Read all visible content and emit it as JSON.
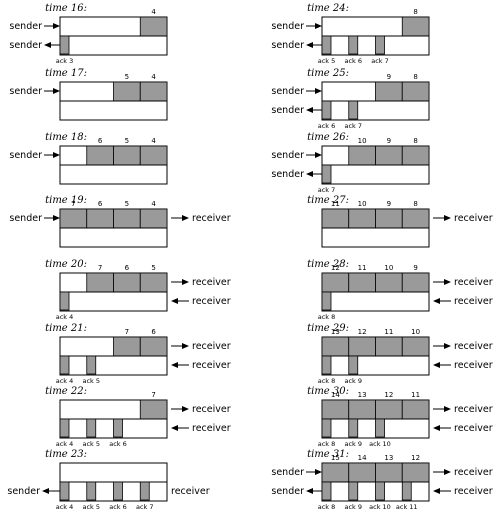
{
  "colors": {
    "segment_fill": "#9a9a9a",
    "outline": "#000000"
  },
  "labels": {
    "sender": "sender",
    "receiver": "receiver",
    "ack_prefix": "ack"
  },
  "panels": [
    {
      "time": "time 16:",
      "data": [
        4
      ],
      "acks": [
        3
      ],
      "arrows": {
        "top_left": "sender",
        "bottom_left": "sender"
      }
    },
    {
      "time": "time 17:",
      "data": [
        5,
        4
      ],
      "acks": [],
      "arrows": {
        "top_left": "sender"
      }
    },
    {
      "time": "time 18:",
      "data": [
        6,
        5,
        4
      ],
      "acks": [],
      "arrows": {
        "top_left": "sender"
      }
    },
    {
      "time": "time 19:",
      "data": [
        7,
        6,
        5,
        4
      ],
      "acks": [],
      "arrows": {
        "top_left": "sender",
        "top_right": "receiver"
      }
    },
    {
      "time": "time 20:",
      "data": [
        7,
        6,
        5
      ],
      "acks": [
        4
      ],
      "arrows": {
        "top_right": "receiver",
        "bottom_right": "receiver"
      }
    },
    {
      "time": "time 21:",
      "data": [
        7,
        6
      ],
      "acks": [
        4,
        5
      ],
      "arrows": {
        "top_right": "receiver",
        "bottom_right": "receiver"
      }
    },
    {
      "time": "time 22:",
      "data": [
        7
      ],
      "acks": [
        4,
        5,
        6
      ],
      "arrows": {
        "top_right": "receiver",
        "bottom_right": "receiver"
      }
    },
    {
      "time": "time 23:",
      "data": [],
      "acks": [
        4,
        5,
        6,
        7
      ],
      "arrows": {
        "bottom_left": "sender",
        "bottom_right": "receiver"
      }
    },
    {
      "time": "time 24:",
      "data": [
        8
      ],
      "acks": [
        5,
        6,
        7
      ],
      "arrows": {
        "top_left": "sender",
        "bottom_left": "sender"
      }
    },
    {
      "time": "time 25:",
      "data": [
        9,
        8
      ],
      "acks": [
        6,
        7
      ],
      "arrows": {
        "top_left": "sender",
        "bottom_left": "sender"
      }
    },
    {
      "time": "time 26:",
      "data": [
        10,
        9,
        8
      ],
      "acks": [
        7
      ],
      "arrows": {
        "top_left": "sender",
        "bottom_left": "sender"
      }
    },
    {
      "time": "time 27:",
      "data": [
        11,
        10,
        9,
        8
      ],
      "acks": [],
      "arrows": {
        "top_right": "receiver"
      }
    },
    {
      "time": "time 28:",
      "data": [
        12,
        11,
        10,
        9
      ],
      "acks": [
        8
      ],
      "arrows": {
        "top_right": "receiver",
        "bottom_right": "receiver"
      }
    },
    {
      "time": "time 29:",
      "data": [
        13,
        12,
        11,
        10
      ],
      "acks": [
        8,
        9
      ],
      "arrows": {
        "top_right": "receiver",
        "bottom_right": "receiver"
      }
    },
    {
      "time": "time 30:",
      "data": [
        14,
        13,
        12,
        11
      ],
      "acks": [
        8,
        9,
        10
      ],
      "arrows": {
        "top_right": "receiver",
        "bottom_right": "receiver"
      }
    },
    {
      "time": "time 31:",
      "data": [
        15,
        14,
        13,
        12
      ],
      "acks": [
        8,
        9,
        10,
        11
      ],
      "arrows": {
        "top_left": "sender",
        "bottom_left": "sender",
        "top_right": "receiver",
        "bottom_right": "receiver"
      }
    }
  ]
}
